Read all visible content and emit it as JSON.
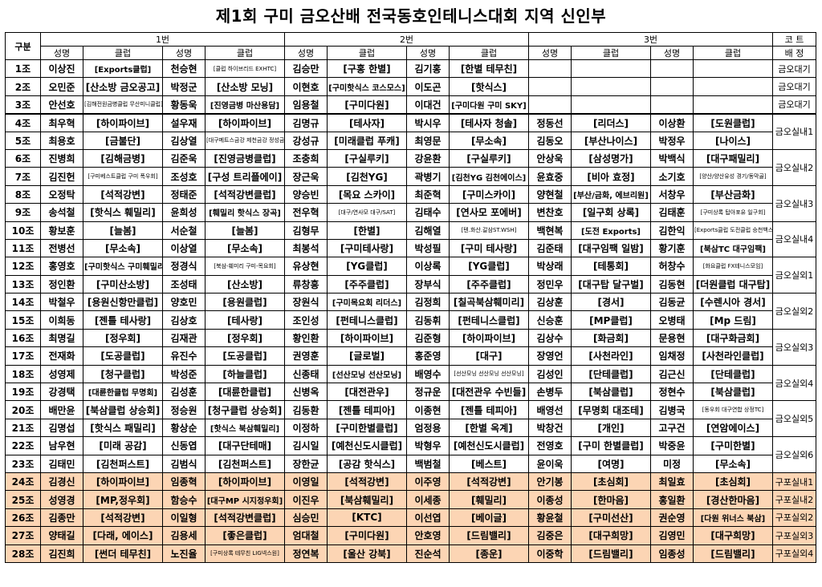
{
  "title": "제1회 구미 금오산배 전국동호인테니스대회 지역 신인부",
  "header": {
    "gubun": "구분",
    "groups": [
      "1번",
      "2번",
      "3번"
    ],
    "court": "코 트",
    "court_sub": "배 정",
    "name": "성명",
    "club": "클럽"
  },
  "rows": [
    {
      "jo": "1조",
      "p": [
        [
          "이상진",
          "[Exports클럽]"
        ],
        [
          "천승현",
          "[클럽 하이브리드 EXHTC]"
        ],
        [
          "김승만",
          "[구홍 한별]"
        ],
        [
          "김기홍",
          "[한별 테무친]"
        ],
        [
          "",
          ""
        ],
        [
          "",
          ""
        ]
      ],
      "court": "금오대기"
    },
    {
      "jo": "2조",
      "p": [
        [
          "오민준",
          "[산소방 금오공고]"
        ],
        [
          "박정군",
          "[산소방 모닝]"
        ],
        [
          "이현호",
          "[구미핫식스 코스모스]"
        ],
        [
          "이도곤",
          "[핫식스]"
        ],
        [
          "",
          ""
        ],
        [
          "",
          ""
        ]
      ],
      "court": "금오대기"
    },
    {
      "jo": "3조",
      "p": [
        [
          "안선호",
          "[김해전원금병클럽 무산미니클럽]"
        ],
        [
          "황동욱",
          "[진영금병 마산용담]"
        ],
        [
          "임용철",
          "[구미다원]"
        ],
        [
          "이대건",
          "[구미다원 구미 SKY]"
        ],
        [
          "",
          ""
        ],
        [
          "",
          ""
        ]
      ],
      "court": "금오대기"
    },
    {
      "jo": "4조",
      "p": [
        [
          "최우혁",
          "[하이파이브]"
        ],
        [
          "설우재",
          "[하이파이브]"
        ],
        [
          "김명규",
          "[테사자]"
        ],
        [
          "박시우",
          "[테사자 청솔]"
        ],
        [
          "정동선",
          "[리더스]"
        ],
        [
          "이상환",
          "[도원클럽]"
        ]
      ],
      "court": "금오실내1"
    },
    {
      "jo": "5조",
      "p": [
        [
          "최용호",
          "[금불단]"
        ],
        [
          "김상열",
          "[대구메트스금강 제천금강 정성금강]"
        ],
        [
          "강성규",
          "[미래클럽 푸캐]"
        ],
        [
          "최영문",
          "[무소속]"
        ],
        [
          "김동오",
          "[부산나이스]"
        ],
        [
          "박정우",
          "[나이스]"
        ]
      ],
      "court": "금오실내1"
    },
    {
      "jo": "6조",
      "p": [
        [
          "진병희",
          "[김해금병]"
        ],
        [
          "김준욱",
          "[진영금병클럽]"
        ],
        [
          "조충희",
          "[구실루키]"
        ],
        [
          "강윤환",
          "[구실루키]"
        ],
        [
          "안상욱",
          "[삼성명가]"
        ],
        [
          "박백식",
          "[대구패밀리]"
        ]
      ],
      "court": "금오실내2"
    },
    {
      "jo": "7조",
      "p": [
        [
          "김진헌",
          "[구미베스트클럽 구미 폭우회]"
        ],
        [
          "조성호",
          "[구성 트리플에이]"
        ],
        [
          "장근욱",
          "[김천YG]"
        ],
        [
          "곽병기",
          "[김천YG 김천에이스]"
        ],
        [
          "윤효중",
          "[비아 효정]"
        ],
        [
          "소기호",
          "[양산/양산유성 경기/동막골]"
        ]
      ],
      "court": "금오실내2"
    },
    {
      "jo": "8조",
      "p": [
        [
          "오정탁",
          "[석적강변]"
        ],
        [
          "정태준",
          "[석적강변클럽]"
        ],
        [
          "양승빈",
          "[목요 스카이]"
        ],
        [
          "최준혁",
          "[구미스카이]"
        ],
        [
          "양현철",
          "[부산/금화, 에브리원]"
        ],
        [
          "서창우",
          "[부산금화]"
        ]
      ],
      "court": "금오실내3"
    },
    {
      "jo": "9조",
      "p": [
        [
          "송석철",
          "[핫식스 훼밀리]"
        ],
        [
          "윤희성",
          "[훼밀리 핫식스 장곡]"
        ],
        [
          "전우혁",
          "[대구/연사모 대구/SAT]"
        ],
        [
          "김태수",
          "[연사모 포에버]"
        ],
        [
          "변찬호",
          "[일구회 상록]"
        ],
        [
          "김태훈",
          "[구미상록 탑아포유 일구회]"
        ]
      ],
      "court": "금오실내3"
    },
    {
      "jo": "10조",
      "p": [
        [
          "황보훈",
          "[늘봄]"
        ],
        [
          "서순철",
          "[늘봄]"
        ],
        [
          "김형무",
          "[한별]"
        ],
        [
          "김해열",
          "[텐.화산.갈삼ST.WSH]"
        ],
        [
          "백현복",
          "[도전 Exports]"
        ],
        [
          "김한익",
          "[Exports클럽 도전클럽 승천백스트]"
        ]
      ],
      "court": "금오실내4"
    },
    {
      "jo": "11조",
      "p": [
        [
          "전병선",
          "[무소속]"
        ],
        [
          "이상열",
          "[무소속]"
        ],
        [
          "최봉석",
          "[구미테사랑]"
        ],
        [
          "박성필",
          "[구미 테사랑]"
        ],
        [
          "김준태",
          "[대구임팩 일밤]"
        ],
        [
          "황기훈",
          "[북삼TC 대구임팩]"
        ]
      ],
      "court": "금오실내4"
    },
    {
      "jo": "12조",
      "p": [
        [
          "홍영호",
          "[구미핫식스 구미훼밀리]"
        ],
        [
          "정경식",
          "[북삼-훼미리 구미-목요회]"
        ],
        [
          "유상현",
          "[YG클럽]"
        ],
        [
          "이상록",
          "[YG클럽]"
        ],
        [
          "박상래",
          "[테통회]"
        ],
        [
          "허창수",
          "[화요클럽 FX테니스모임]"
        ]
      ],
      "court": "금오실외1"
    },
    {
      "jo": "13조",
      "p": [
        [
          "정인환",
          "[구미산소방]"
        ],
        [
          "조성태",
          "[산소방]"
        ],
        [
          "류창흥",
          "[주주클럽]"
        ],
        [
          "장부식",
          "[주주클럽]"
        ],
        [
          "정민우",
          "[대구탑 달구벌]"
        ],
        [
          "김동현",
          "[더원클럽 대구탑]"
        ]
      ],
      "court": "금오실외1"
    },
    {
      "jo": "14조",
      "p": [
        [
          "박철우",
          "[용원신항만클럽]"
        ],
        [
          "양호민",
          "[용원클럽]"
        ],
        [
          "장원식",
          "[구미목요회 리더스]"
        ],
        [
          "김정희",
          "[칠곡북삼훼미리]"
        ],
        [
          "김상훈",
          "[경서]"
        ],
        [
          "김동균",
          "[수렌시아 경서]"
        ]
      ],
      "court": "금오실외2"
    },
    {
      "jo": "15조",
      "p": [
        [
          "이희동",
          "[젠틀 테사랑]"
        ],
        [
          "김상호",
          "[테사랑]"
        ],
        [
          "조인성",
          "[펀테니스클럽]"
        ],
        [
          "김동휘",
          "[펀테니스클럽]"
        ],
        [
          "신승훈",
          "[MP클럽]"
        ],
        [
          "오병태",
          "[Mp 드림]"
        ]
      ],
      "court": "금오실외2"
    },
    {
      "jo": "16조",
      "p": [
        [
          "최명길",
          "[정우회]"
        ],
        [
          "김재관",
          "[정우회]"
        ],
        [
          "황인환",
          "[하이파이브]"
        ],
        [
          "김준형",
          "[하이파이브]"
        ],
        [
          "김상수",
          "[화금회]"
        ],
        [
          "문용현",
          "[대구화금회]"
        ]
      ],
      "court": "금오실외3"
    },
    {
      "jo": "17조",
      "p": [
        [
          "전재화",
          "[도공클럽]"
        ],
        [
          "유진수",
          "[도공클럽]"
        ],
        [
          "권영훈",
          "[글로벌]"
        ],
        [
          "홍준영",
          "[대구]"
        ],
        [
          "장영언",
          "[사천라인]"
        ],
        [
          "임채정",
          "[사천라인클럽]"
        ]
      ],
      "court": "금오실외3"
    },
    {
      "jo": "18조",
      "p": [
        [
          "성영제",
          "[청구클럽]"
        ],
        [
          "박성준",
          "[하늘클럽]"
        ],
        [
          "신종태",
          "[선산모닝 선산모닝]"
        ],
        [
          "배영수",
          "[선산모닝 선산모닝 선산모닝]"
        ],
        [
          "김성인",
          "[단테클럽]"
        ],
        [
          "김근신",
          "[단테클럽]"
        ]
      ],
      "court": "금오실외4"
    },
    {
      "jo": "19조",
      "p": [
        [
          "강경택",
          "[대륜한클럽 무명회]"
        ],
        [
          "김성훈",
          "[대륜한클럽]"
        ],
        [
          "신병옥",
          "[대전관우]"
        ],
        [
          "정규운",
          "[대전관우 수빈들]"
        ],
        [
          "손병두",
          "[북삼클럽]"
        ],
        [
          "정현수",
          "[북삼클럽]"
        ]
      ],
      "court": "금오실외4"
    },
    {
      "jo": "20조",
      "p": [
        [
          "배만윤",
          "[북삼클럽 상승회]"
        ],
        [
          "정승원",
          "[청구클럽 상승회]"
        ],
        [
          "김동환",
          "[젠틀 테피아]"
        ],
        [
          "이종현",
          "[젠틀 테피아]"
        ],
        [
          "배영선",
          "[무명회 대조테]"
        ],
        [
          "김병국",
          "[동우회 대구연합 상정TC]"
        ]
      ],
      "court": "금오실외5"
    },
    {
      "jo": "21조",
      "p": [
        [
          "김명섭",
          "[핫식스 패밀리]"
        ],
        [
          "황상순",
          "[핫식스 북삼훼밀리]"
        ],
        [
          "이정하",
          "[구미한별클럽]"
        ],
        [
          "엄정용",
          "[한별 옥계]"
        ],
        [
          "박창건",
          "[개인]"
        ],
        [
          "고구건",
          "[연암에이스]"
        ]
      ],
      "court": "금오실외5"
    },
    {
      "jo": "22조",
      "p": [
        [
          "남우현",
          "[미래 공감]"
        ],
        [
          "신동엽",
          "[대구단테매]"
        ],
        [
          "김시일",
          "[예천신도시클럽]"
        ],
        [
          "박형우",
          "[예천신도시클럽]"
        ],
        [
          "전영호",
          "[구미 한별클럽]"
        ],
        [
          "박중윤",
          "[구미한별]"
        ]
      ],
      "court": "금오실외6"
    },
    {
      "jo": "23조",
      "p": [
        [
          "김태민",
          "[김천퍼스트]"
        ],
        [
          "김범식",
          "[김천퍼스트]"
        ],
        [
          "장한균",
          "[공감 핫식스]"
        ],
        [
          "백범철",
          "[베스트]"
        ],
        [
          "윤이욱",
          "[여명]"
        ],
        [
          "미정",
          "[무소속]"
        ]
      ],
      "court": "금오실외6"
    },
    {
      "jo": "24조",
      "p": [
        [
          "김경신",
          "[하이파이브]"
        ],
        [
          "임종혁",
          "[하이파이브]"
        ],
        [
          "이영일",
          "[석적강변]"
        ],
        [
          "이주영",
          "[석적강변]"
        ],
        [
          "안기봉",
          "[초심회]"
        ],
        [
          "최일효",
          "[초심회]"
        ]
      ],
      "court": "구포실내1"
    },
    {
      "jo": "25조",
      "p": [
        [
          "성영경",
          "[MP,정우회]"
        ],
        [
          "함승수",
          "[대구MP 시지정우회]"
        ],
        [
          "이진우",
          "[북삼훼밀리]"
        ],
        [
          "이세종",
          "[훼밀리]"
        ],
        [
          "이종성",
          "[한마음]"
        ],
        [
          "홍일환",
          "[경산한마음]"
        ]
      ],
      "court": "구포실내2"
    },
    {
      "jo": "26조",
      "p": [
        [
          "김종만",
          "[석적강변]"
        ],
        [
          "이일형",
          "[석적강변클럽]"
        ],
        [
          "심승민",
          "[KTC]"
        ],
        [
          "이선엽",
          "[베이글]"
        ],
        [
          "황윤철",
          "[구미선산]"
        ],
        [
          "권순영",
          "[다원 위너스 북삼]"
        ]
      ],
      "court": "구포실외2"
    },
    {
      "jo": "27조",
      "p": [
        [
          "양태길",
          "[다래, 에이스]"
        ],
        [
          "김용세",
          "[좋은클럽]"
        ],
        [
          "엄대철",
          "[구미다원]"
        ],
        [
          "안호영",
          "[드림밸리]"
        ],
        [
          "김중은",
          "[대구희망]"
        ],
        [
          "김영민",
          "[대구희망]"
        ]
      ],
      "court": "구포실외3"
    },
    {
      "jo": "28조",
      "p": [
        [
          "김진희",
          "[썬더 테무친]"
        ],
        [
          "노진율",
          "[구미상록 테무친 LIG넥스원]"
        ],
        [
          "정연복",
          "[울산 강북]"
        ],
        [
          "진순석",
          "[종운]"
        ],
        [
          "이중학",
          "[드림밸리]"
        ],
        [
          "임종성",
          "[드림밸리]"
        ]
      ],
      "court": "구포실외4"
    }
  ]
}
